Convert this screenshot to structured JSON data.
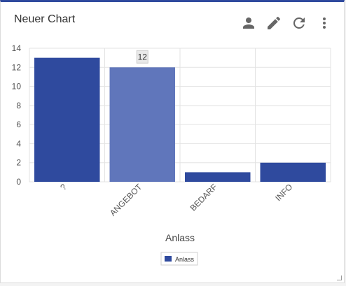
{
  "widget": {
    "title": "Neuer Chart",
    "icons": [
      "person-icon",
      "pencil-icon",
      "refresh-icon",
      "more-vert-icon"
    ]
  },
  "colors": {
    "bar": "#2f4a9e",
    "bar_highlight": "#6076bb",
    "grid": "#e3e3e3",
    "axis_text": "#555555",
    "tooltip_bg": "#e9e9e9"
  },
  "chart_data": {
    "type": "bar",
    "categories": [
      "?",
      "ANGEBOT",
      "BEDARF",
      "INFO"
    ],
    "series": [
      {
        "name": "Anlass",
        "values": [
          13,
          12,
          1,
          2
        ]
      }
    ],
    "xlabel": "Anlass",
    "ylabel": "",
    "ylim": [
      0,
      14
    ],
    "yticks": [
      0,
      2,
      4,
      6,
      8,
      10,
      12,
      14
    ],
    "grid": true,
    "legend": "bottom-center",
    "highlighted_index": 1,
    "tooltip": "12"
  }
}
